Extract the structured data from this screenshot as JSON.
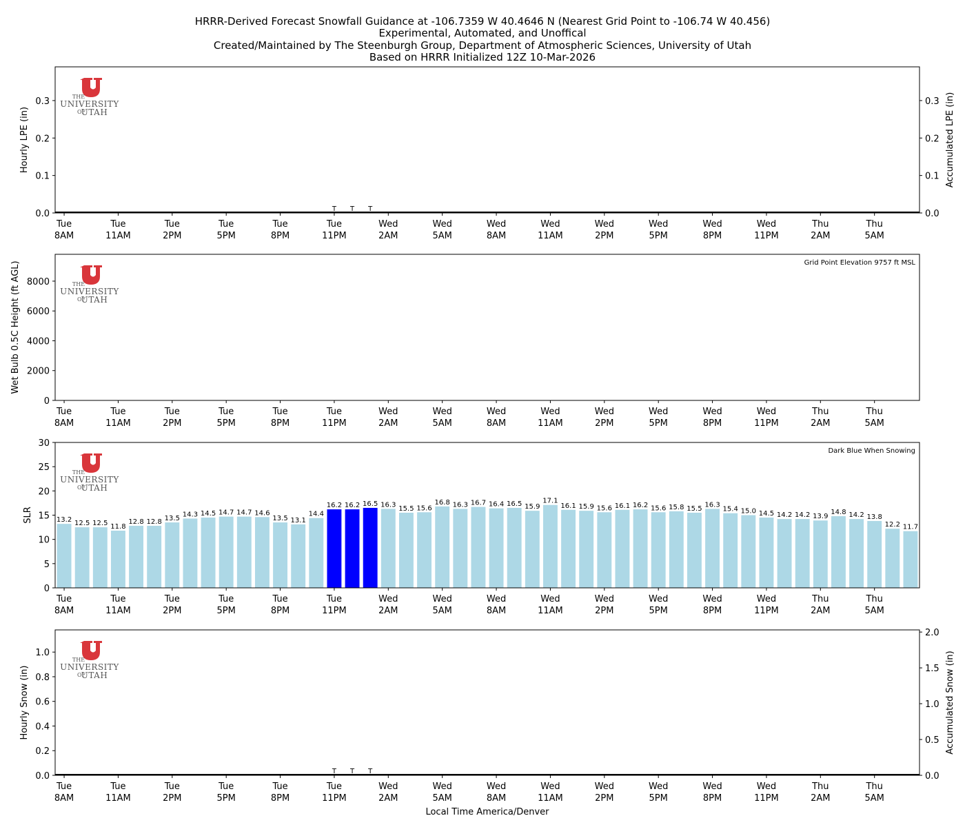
{
  "title": {
    "line1": "HRRR-Derived Forecast Snowfall Guidance at -106.7359 W 40.4646 N (Nearest Grid Point to -106.74 W 40.456)",
    "line2": "Experimental, Automated, and Unoffical",
    "line3": "Created/Maintained by The Steenburgh Group, Department of Atmospheric Sciences, University of Utah",
    "line4": "Based on HRRR Initialized 12Z 10-Mar-2026"
  },
  "logo": {
    "small_top": "THE",
    "big": "UNIVERSITY",
    "small_bottom": "OF",
    "big_bottom": "UTAH"
  },
  "xlabel": "Local Time America/Denver",
  "colors": {
    "light_bar": "#add8e6",
    "snow_bar": "#0000ff",
    "logo_red": "#d9363b",
    "logo_text": "#555555"
  },
  "chart_data": [
    {
      "type": "bar",
      "name": "lpe",
      "ylabel": "Hourly LPE (in)",
      "y2label": "Accumulated LPE (in)",
      "ylim": [
        0,
        0.39
      ],
      "yticks": [
        "0.0",
        "0.1",
        "0.2",
        "0.3"
      ],
      "y2lim": [
        0,
        0.39
      ],
      "y2ticks": [
        "0.0",
        "0.1",
        "0.2",
        "0.3"
      ],
      "hours": 48,
      "values": [],
      "accumulated": "0.0 throughout",
      "trace_markers": [
        "T",
        "T",
        "T"
      ],
      "trace_hours": [
        16,
        17,
        18
      ]
    },
    {
      "type": "line",
      "name": "wetbulb",
      "ylabel": "Wet Bulb 0.5C Height (ft AGL)",
      "ylim": [
        0,
        9800
      ],
      "yticks": [
        "0",
        "2000",
        "4000",
        "6000",
        "8000"
      ],
      "annotation": "Grid Point Elevation 9757 ft MSL",
      "values": []
    },
    {
      "type": "bar",
      "name": "slr",
      "ylabel": "SLR",
      "ylim": [
        0,
        30
      ],
      "yticks": [
        "0",
        "5",
        "10",
        "15",
        "20",
        "25",
        "30"
      ],
      "annotation": "Dark Blue When Snowing",
      "values": [
        13.2,
        12.5,
        12.5,
        11.8,
        12.8,
        12.8,
        13.5,
        14.3,
        14.5,
        14.7,
        14.7,
        14.6,
        13.5,
        13.1,
        14.4,
        16.2,
        16.2,
        16.5,
        16.3,
        15.5,
        15.6,
        16.8,
        16.3,
        16.7,
        16.4,
        16.5,
        15.9,
        17.1,
        16.1,
        15.9,
        15.6,
        16.1,
        16.2,
        15.6,
        15.8,
        15.5,
        16.3,
        15.4,
        15.0,
        14.5,
        14.2,
        14.2,
        13.9,
        14.8,
        14.2,
        13.8,
        12.2,
        11.7
      ],
      "labels": [
        "13.2",
        "12.5",
        "12.5",
        "11.8",
        "12.8",
        "12.8",
        "13.5",
        "14.3",
        "14.5",
        "14.7",
        "14.7",
        "14.6",
        "13.5",
        "13.1",
        "14.4",
        "16.2",
        "16.2",
        "16.5",
        "16.3",
        "15.5",
        "15.6",
        "16.8",
        "16.3",
        "16.7",
        "16.4",
        "16.5",
        "15.9",
        "17.1",
        "16.1",
        "15.9",
        "15.6",
        "16.1",
        "16.2",
        "15.6",
        "15.8",
        "15.5",
        "16.3",
        "15.4",
        "15.0",
        "14.5",
        "14.2",
        "14.2",
        "13.9",
        "14.8",
        "14.2",
        "13.8",
        "12.2",
        "11.7"
      ],
      "snowing": [
        16,
        17,
        18
      ]
    },
    {
      "type": "bar",
      "name": "snow",
      "ylabel": "Hourly Snow (in)",
      "y2label": "Accumulated Snow (in)",
      "ylim": [
        0,
        1.18
      ],
      "yticks": [
        "0.0",
        "0.2",
        "0.4",
        "0.6",
        "0.8",
        "1.0"
      ],
      "y2lim": [
        0,
        2.03
      ],
      "y2ticks": [
        "0.0",
        "0.5",
        "1.0",
        "1.5",
        "2.0"
      ],
      "hours": 48,
      "values": [],
      "accumulated": "0.0 throughout",
      "trace_markers": [
        "T",
        "T",
        "T"
      ],
      "trace_hours": [
        16,
        17,
        18
      ]
    }
  ],
  "time_axis": {
    "day": [
      "Tue",
      "Tue",
      "Tue",
      "Tue",
      "Tue",
      "Tue",
      "Wed",
      "Wed",
      "Wed",
      "Wed",
      "Wed",
      "Wed",
      "Wed",
      "Wed",
      "Thu",
      "Thu"
    ],
    "time": [
      "8AM",
      "11AM",
      "2PM",
      "5PM",
      "8PM",
      "11PM",
      "2AM",
      "5AM",
      "8AM",
      "11AM",
      "2PM",
      "5PM",
      "8PM",
      "11PM",
      "2AM",
      "5AM"
    ],
    "tick_hours": [
      1,
      4,
      7,
      10,
      13,
      16,
      19,
      22,
      25,
      28,
      31,
      34,
      37,
      40,
      43,
      46
    ]
  }
}
